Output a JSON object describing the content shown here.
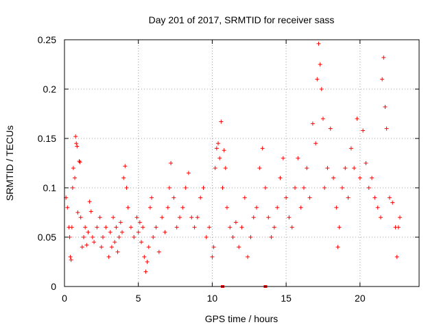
{
  "chart_data": {
    "type": "scatter",
    "title": "Day 201 of 2017, SRMTID for receiver sass",
    "xlabel": "GPS time / hours",
    "ylabel": "SRMTID / TECUs",
    "xlim": [
      0,
      24
    ],
    "ylim": [
      0,
      0.25
    ],
    "xticks": [
      0,
      5,
      10,
      15,
      20
    ],
    "xtick_labels": [
      "0",
      "5",
      "10",
      "15",
      "20"
    ],
    "yticks": [
      0,
      0.05,
      0.1,
      0.15,
      0.2,
      0.25
    ],
    "ytick_labels": [
      "0",
      "0.05",
      "0.1",
      "0.15",
      "0.2",
      "0.25"
    ],
    "grid": true,
    "marker": "plus",
    "color": "#ff0000",
    "series": [
      {
        "name": "SRMTID",
        "points": [
          [
            0.1,
            0.09
          ],
          [
            0.2,
            0.08
          ],
          [
            0.3,
            0.06
          ],
          [
            0.35,
            0.05
          ],
          [
            0.4,
            0.03
          ],
          [
            0.45,
            0.027
          ],
          [
            0.5,
            0.06
          ],
          [
            0.55,
            0.1
          ],
          [
            0.6,
            0.12
          ],
          [
            0.7,
            0.11
          ],
          [
            0.75,
            0.152
          ],
          [
            0.8,
            0.145
          ],
          [
            0.85,
            0.142
          ],
          [
            0.9,
            0.075
          ],
          [
            1.0,
            0.127
          ],
          [
            1.05,
            0.126
          ],
          [
            1.1,
            0.07
          ],
          [
            1.2,
            0.04
          ],
          [
            1.3,
            0.05
          ],
          [
            1.4,
            0.06
          ],
          [
            1.5,
            0.042
          ],
          [
            1.6,
            0.055
          ],
          [
            1.7,
            0.086
          ],
          [
            1.8,
            0.076
          ],
          [
            1.9,
            0.05
          ],
          [
            2.0,
            0.045
          ],
          [
            2.2,
            0.06
          ],
          [
            2.4,
            0.07
          ],
          [
            2.5,
            0.04
          ],
          [
            2.6,
            0.05
          ],
          [
            2.8,
            0.06
          ],
          [
            3.0,
            0.03
          ],
          [
            3.1,
            0.055
          ],
          [
            3.2,
            0.04
          ],
          [
            3.3,
            0.07
          ],
          [
            3.4,
            0.045
          ],
          [
            3.5,
            0.06
          ],
          [
            3.6,
            0.035
          ],
          [
            3.7,
            0.05
          ],
          [
            3.8,
            0.065
          ],
          [
            3.9,
            0.055
          ],
          [
            4.0,
            0.11
          ],
          [
            4.1,
            0.122
          ],
          [
            4.2,
            0.1
          ],
          [
            4.3,
            0.08
          ],
          [
            4.5,
            0.06
          ],
          [
            4.7,
            0.05
          ],
          [
            4.9,
            0.07
          ],
          [
            5.0,
            0.055
          ],
          [
            5.1,
            0.065
          ],
          [
            5.2,
            0.045
          ],
          [
            5.3,
            0.06
          ],
          [
            5.4,
            0.03
          ],
          [
            5.5,
            0.015
          ],
          [
            5.6,
            0.025
          ],
          [
            5.7,
            0.04
          ],
          [
            5.8,
            0.08
          ],
          [
            5.9,
            0.09
          ],
          [
            6.0,
            0.05
          ],
          [
            6.2,
            0.06
          ],
          [
            6.4,
            0.035
          ],
          [
            6.6,
            0.07
          ],
          [
            6.8,
            0.055
          ],
          [
            7.0,
            0.08
          ],
          [
            7.1,
            0.1
          ],
          [
            7.2,
            0.125
          ],
          [
            7.4,
            0.09
          ],
          [
            7.6,
            0.06
          ],
          [
            7.8,
            0.07
          ],
          [
            8.0,
            0.08
          ],
          [
            8.2,
            0.1
          ],
          [
            8.4,
            0.115
          ],
          [
            8.6,
            0.07
          ],
          [
            8.8,
            0.06
          ],
          [
            9.0,
            0.07
          ],
          [
            9.2,
            0.09
          ],
          [
            9.4,
            0.1
          ],
          [
            9.6,
            0.05
          ],
          [
            9.8,
            0.06
          ],
          [
            10.0,
            0.03
          ],
          [
            10.1,
            0.04
          ],
          [
            10.2,
            0.12
          ],
          [
            10.3,
            0.14
          ],
          [
            10.4,
            0.145
          ],
          [
            10.5,
            0.13
          ],
          [
            10.6,
            0.167
          ],
          [
            10.7,
            0.1
          ],
          [
            10.8,
            0.138
          ],
          [
            10.9,
            0.12
          ],
          [
            11.0,
            0.08
          ],
          [
            11.2,
            0.06
          ],
          [
            11.4,
            0.05
          ],
          [
            11.6,
            0.065
          ],
          [
            11.8,
            0.04
          ],
          [
            12.0,
            0.06
          ],
          [
            12.2,
            0.09
          ],
          [
            12.4,
            0.03
          ],
          [
            12.6,
            0.05
          ],
          [
            12.8,
            0.07
          ],
          [
            13.0,
            0.08
          ],
          [
            13.2,
            0.12
          ],
          [
            13.4,
            0.14
          ],
          [
            13.6,
            0.1
          ],
          [
            13.8,
            0.07
          ],
          [
            14.0,
            0.05
          ],
          [
            14.2,
            0.06
          ],
          [
            14.4,
            0.08
          ],
          [
            14.6,
            0.11
          ],
          [
            14.8,
            0.13
          ],
          [
            15.0,
            0.09
          ],
          [
            15.2,
            0.07
          ],
          [
            15.4,
            0.06
          ],
          [
            15.6,
            0.1
          ],
          [
            15.8,
            0.13
          ],
          [
            16.0,
            0.08
          ],
          [
            16.2,
            0.1
          ],
          [
            16.4,
            0.12
          ],
          [
            16.6,
            0.09
          ],
          [
            16.8,
            0.165
          ],
          [
            17.0,
            0.145
          ],
          [
            17.1,
            0.21
          ],
          [
            17.2,
            0.246
          ],
          [
            17.3,
            0.225
          ],
          [
            17.4,
            0.2
          ],
          [
            17.5,
            0.17
          ],
          [
            17.6,
            0.1
          ],
          [
            17.8,
            0.12
          ],
          [
            18.0,
            0.16
          ],
          [
            18.2,
            0.11
          ],
          [
            18.4,
            0.08
          ],
          [
            18.5,
            0.04
          ],
          [
            18.6,
            0.06
          ],
          [
            18.8,
            0.1
          ],
          [
            19.0,
            0.12
          ],
          [
            19.2,
            0.09
          ],
          [
            19.4,
            0.14
          ],
          [
            19.6,
            0.12
          ],
          [
            19.8,
            0.17
          ],
          [
            20.0,
            0.11
          ],
          [
            20.2,
            0.158
          ],
          [
            20.4,
            0.125
          ],
          [
            20.6,
            0.1
          ],
          [
            20.8,
            0.11
          ],
          [
            21.0,
            0.09
          ],
          [
            21.2,
            0.08
          ],
          [
            21.4,
            0.07
          ],
          [
            21.5,
            0.21
          ],
          [
            21.6,
            0.232
          ],
          [
            21.7,
            0.182
          ],
          [
            21.8,
            0.16
          ],
          [
            22.0,
            0.09
          ],
          [
            22.2,
            0.085
          ],
          [
            22.4,
            0.06
          ],
          [
            22.5,
            0.03
          ],
          [
            22.6,
            0.06
          ],
          [
            22.7,
            0.07
          ]
        ]
      }
    ],
    "marks_at_zero": [
      10.7,
      13.6
    ]
  }
}
